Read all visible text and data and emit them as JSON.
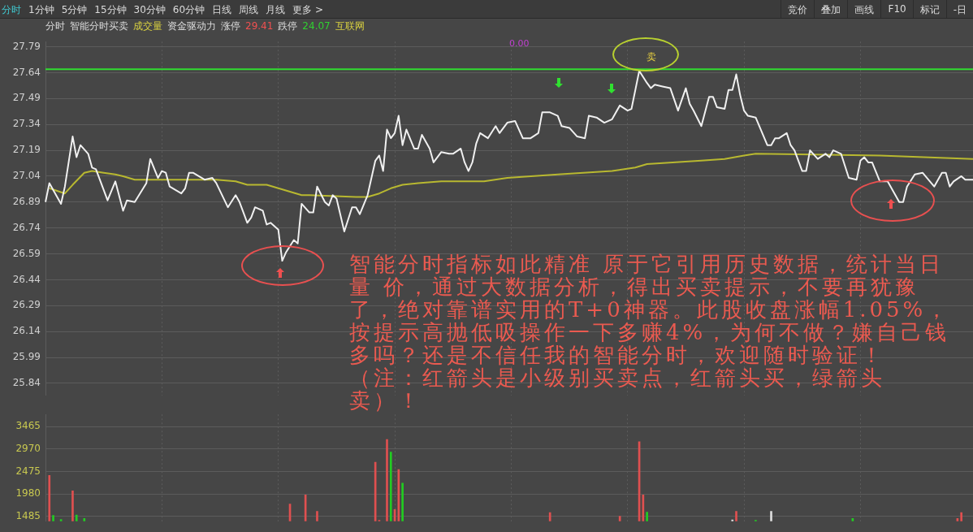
{
  "chart_data": [
    {
      "type": "line",
      "annotations": [
        "分时",
        "1分钟",
        "5分钟",
        "15分钟",
        "30分钟",
        "60分钟",
        "日线",
        "周线",
        "月线",
        "更多 >",
        "竞价",
        "叠加",
        "画线",
        "F10",
        "标记",
        "-日",
        "分时",
        "智能分时买卖",
        "成交量",
        "资金驱动力",
        "涨停",
        "29.41",
        "跌停",
        "24.07",
        "互联网",
        "0.00",
        "智能分时指标如此精准 原于它引用历史数据，统计当日量 价，通过大数据分析，得出买卖提示，不要再犹豫了，绝对靠谱实用的T+0神器。此股收盘涨幅1.05%，按提示高抛低吸操作一下多赚4%，为何不做？嫌自己钱多吗？还是不信任我的智能分时，欢迎随时验证！（注：红箭头是小级别买卖点，红箭头买，绿箭头卖）！",
        "卖"
      ],
      "categories": [
        null,
        null,
        null,
        null,
        null,
        null,
        null,
        null,
        null,
        null,
        null,
        null,
        null,
        null,
        null,
        null,
        null,
        null,
        null,
        null,
        null,
        null,
        null,
        null,
        null,
        null,
        null,
        null,
        null,
        null,
        null,
        null,
        null,
        null,
        null,
        null,
        null,
        null,
        null,
        null,
        null,
        null,
        null,
        null,
        null,
        null,
        null,
        null,
        null,
        null,
        null,
        null,
        null,
        null,
        null,
        null,
        null,
        null,
        null,
        null,
        null,
        null,
        null,
        null,
        null,
        null,
        null,
        null,
        null,
        null,
        null,
        null,
        null,
        null,
        null,
        null,
        null,
        null,
        null,
        null,
        null,
        null,
        null,
        null,
        null,
        null,
        null,
        null,
        null,
        null,
        null,
        null,
        null,
        null,
        null,
        null,
        null,
        null,
        null,
        null,
        null,
        null,
        null,
        null,
        null,
        null,
        null,
        null,
        null,
        null,
        null,
        null,
        null,
        null,
        null,
        null,
        null,
        null,
        null,
        null,
        null,
        null,
        null,
        null,
        null,
        null,
        null,
        null,
        null,
        null,
        null,
        null,
        null,
        null,
        null,
        null,
        null,
        null,
        null,
        null,
        null,
        null,
        null,
        null,
        null,
        null,
        null,
        null,
        null,
        null,
        null,
        null,
        null,
        null,
        null,
        null,
        null,
        null,
        null,
        null,
        null,
        null,
        null,
        null,
        null,
        null,
        null,
        null,
        null,
        null,
        null,
        null,
        null,
        null,
        null,
        null,
        null,
        null,
        null,
        null,
        null,
        null,
        null,
        null,
        null,
        null,
        null,
        null,
        null,
        null,
        null,
        null,
        null,
        null,
        null,
        null,
        null,
        null,
        null,
        null,
        null,
        null,
        null,
        null,
        null,
        null,
        null,
        null,
        null,
        null,
        null,
        null,
        null,
        null,
        null,
        null,
        null,
        null,
        null,
        null,
        null,
        null,
        null,
        null,
        null,
        null,
        null,
        null,
        null,
        null,
        null,
        null,
        null,
        null,
        null,
        null,
        null,
        null,
        null,
        null
      ],
      "series": [
        {
          "color": "#f0f0f0",
          "values": [
            26.89,
            27.0,
            null,
            null,
            26.88,
            26.98,
            null,
            27.27,
            27.15,
            27.22,
            null,
            27.17,
            27.09,
            27.08,
            null,
            null,
            26.9,
            null,
            27.01,
            null,
            26.84,
            26.9,
            null,
            26.89,
            null,
            null,
            27.0,
            27.14,
            null,
            27.03,
            27.07,
            27.06,
            26.98,
            null,
            null,
            26.94,
            26.97,
            27.06,
            27.06,
            null,
            null,
            27.02,
            null,
            27.03,
            27.0,
            null,
            null,
            26.86,
            null,
            26.93,
            26.89,
            null,
            26.77,
            26.8,
            26.86,
            null,
            26.84,
            26.76,
            26.77,
            null,
            26.73,
            26.55,
            26.6,
            null,
            26.67,
            26.65,
            26.88,
            null,
            26.83,
            26.83,
            26.98,
            null,
            26.89,
            26.87,
            26.93,
            26.91,
            null,
            26.72,
            null,
            26.86,
            26.86,
            26.82,
            null,
            26.93,
            null,
            27.13,
            27.16,
            27.07,
            27.31,
            27.26,
            27.29,
            27.39,
            27.22,
            27.31,
            null,
            27.2,
            27.2,
            27.28,
            null,
            27.2,
            27.12,
            null,
            27.18,
            null,
            27.17,
            27.17,
            null,
            27.2,
            27.12,
            27.07,
            27.12,
            27.23,
            27.29,
            null,
            27.26,
            null,
            27.33,
            27.29,
            null,
            27.35,
            null,
            27.36,
            null,
            27.26,
            null,
            27.26,
            null,
            27.29,
            27.41,
            null,
            27.41,
            null,
            27.39,
            27.33,
            null,
            27.32,
            null,
            27.27,
            null,
            27.26,
            27.39,
            null,
            27.38,
            null,
            27.35,
            null,
            27.37,
            null,
            27.45,
            null,
            27.42,
            27.43,
            null,
            27.65,
            null,
            27.58,
            27.55,
            27.57,
            null,
            27.56,
            null,
            27.55,
            null,
            27.42,
            null,
            27.55,
            27.46,
            27.42,
            null,
            27.33,
            null,
            27.5,
            27.5,
            27.44,
            null,
            27.43,
            27.54,
            27.54,
            27.63,
            27.51,
            27.42,
            27.39,
            null,
            27.38,
            null,
            null,
            27.22,
            27.22,
            27.26,
            27.26,
            null,
            27.29,
            27.22,
            27.19,
            null,
            27.07,
            27.07,
            27.19,
            null,
            27.14,
            null,
            27.17,
            27.15,
            27.19,
            null,
            27.17,
            null,
            27.03,
            null,
            27.02,
            27.13,
            27.15,
            27.12,
            27.12,
            null,
            27.01,
            null,
            27.01,
            null,
            null,
            26.89,
            26.89,
            26.98,
            null,
            27.05,
            null,
            27.06,
            null,
            null,
            26.98,
            null,
            27.06,
            27.06,
            26.98,
            27.01,
            null,
            27.04,
            27.02,
            null,
            27.02
          ]
        },
        {
          "color": "#b8b830",
          "values": [
            null,
            26.97,
            null,
            null,
            null,
            26.94,
            null,
            26.99,
            null,
            null,
            27.06,
            null,
            27.07,
            null,
            null,
            27.06,
            null,
            null,
            27.05,
            null,
            27.04,
            null,
            null,
            27.02,
            null,
            null,
            null,
            null,
            27.02,
            null,
            null,
            null,
            null,
            null,
            null,
            null,
            null,
            null,
            null,
            null,
            null,
            null,
            null,
            null,
            27.02,
            null,
            null,
            null,
            null,
            27.01,
            null,
            null,
            26.99,
            null,
            null,
            null,
            null,
            26.99,
            null,
            null,
            26.97,
            null,
            null,
            26.95,
            null,
            null,
            26.93,
            null,
            26.93,
            null,
            null,
            null,
            null,
            null,
            null,
            null,
            null,
            null,
            null,
            null,
            26.92,
            null,
            null,
            26.92,
            null,
            null,
            26.94,
            null,
            null,
            26.97,
            null,
            null,
            26.99,
            null,
            null,
            null,
            27.0,
            null,
            null,
            null,
            null,
            null,
            27.01,
            null,
            null,
            null,
            null,
            null,
            null,
            null,
            null,
            null,
            null,
            27.01,
            null,
            null,
            null,
            null,
            null,
            27.03,
            null,
            null,
            null,
            null,
            null,
            null,
            null,
            null,
            null,
            null,
            null,
            null,
            27.05,
            null,
            null,
            null,
            null,
            null,
            null,
            null,
            null,
            null,
            null,
            null,
            null,
            null,
            27.07,
            null,
            null,
            null,
            null,
            null,
            27.09,
            null,
            null,
            27.11,
            null,
            null,
            null,
            null,
            null,
            null,
            null,
            null,
            null,
            null,
            null,
            null,
            null,
            27.13,
            null,
            null,
            null,
            null,
            null,
            27.14,
            null,
            null,
            null,
            null,
            27.16,
            null,
            null,
            27.17,
            null,
            null,
            null,
            null,
            null,
            null,
            null,
            null,
            null,
            null,
            null,
            null,
            null,
            null,
            null,
            null,
            null,
            null,
            null,
            null,
            null,
            null,
            null,
            null,
            null,
            null,
            null,
            null,
            null,
            null,
            null,
            27.16,
            null,
            null,
            null,
            null,
            null,
            null,
            null,
            null,
            null,
            null,
            null,
            null,
            null,
            null,
            null,
            null,
            null,
            null,
            null,
            null,
            null,
            null,
            null,
            27.14
          ]
        }
      ],
      "ref_lines": [
        {
          "axis": "y",
          "value": 27.66,
          "color": "#30dd30"
        }
      ],
      "ylim": [
        25.77,
        27.82
      ],
      "yticks": [
        27.79,
        27.64,
        27.49,
        27.34,
        27.19,
        27.04,
        26.89,
        26.74,
        26.59,
        26.44,
        26.29,
        26.14,
        25.99,
        25.84
      ],
      "grid": true,
      "tick_labels": "y"
    },
    {
      "type": "bar",
      "categories": [
        null,
        null,
        null,
        null,
        null,
        null,
        null,
        null,
        null,
        null,
        null,
        null,
        null,
        null,
        null,
        null,
        null,
        null,
        null,
        null,
        null,
        null,
        null,
        null,
        null,
        null,
        null,
        null,
        null,
        null,
        null,
        null,
        null,
        null,
        null,
        null,
        null,
        null,
        null,
        null,
        null,
        null,
        null,
        null,
        null,
        null,
        null,
        null,
        null,
        null,
        null,
        null,
        null,
        null,
        null,
        null,
        null,
        null,
        null,
        null,
        null,
        null,
        null,
        null,
        null,
        null,
        null,
        null,
        null,
        null,
        null,
        null,
        null,
        null,
        null,
        null,
        null,
        null,
        null,
        null,
        null,
        null,
        null,
        null,
        null,
        null,
        null,
        null,
        null,
        null,
        null,
        null,
        null,
        null,
        null,
        null,
        null,
        null,
        null,
        null,
        null,
        null,
        null,
        null,
        null,
        null,
        null,
        null,
        null,
        null,
        null,
        null,
        null,
        null,
        null,
        null,
        null,
        null,
        null,
        null,
        null,
        null,
        null,
        null,
        null,
        null,
        null,
        null,
        null,
        null,
        null,
        null,
        null,
        null,
        null,
        null,
        null,
        null,
        null,
        null,
        null,
        null,
        null,
        null,
        null,
        null,
        null,
        null,
        null,
        null,
        null,
        null,
        null,
        null,
        null,
        null,
        null,
        null,
        null,
        null,
        null,
        null,
        null,
        null,
        null,
        null,
        null,
        null,
        null,
        null,
        null,
        null,
        null,
        null,
        null,
        null,
        null,
        null,
        null,
        null,
        null,
        null,
        null,
        null,
        null,
        null,
        null,
        null,
        null,
        null,
        null,
        null,
        null,
        null,
        null,
        null,
        null,
        null,
        null,
        null,
        null,
        null,
        null,
        null,
        null,
        null,
        null,
        null,
        null,
        null,
        null,
        null,
        null,
        null,
        null,
        null,
        null,
        null,
        null,
        null,
        null,
        null,
        null,
        null,
        null,
        null,
        null,
        null,
        null,
        null,
        null,
        null,
        null,
        null,
        null,
        null,
        null,
        null,
        null,
        null
      ],
      "values": [
        null,
        2390,
        1510,
        null,
        1420,
        null,
        null,
        2050,
        1520,
        null,
        1440,
        null,
        null,
        null,
        null,
        null,
        null,
        null,
        null,
        null,
        null,
        null,
        null,
        null,
        null,
        null,
        null,
        null,
        null,
        null,
        null,
        null,
        null,
        null,
        null,
        null,
        null,
        null,
        null,
        null,
        null,
        null,
        null,
        null,
        null,
        null,
        null,
        null,
        null,
        null,
        null,
        null,
        null,
        null,
        null,
        null,
        null,
        null,
        null,
        null,
        null,
        null,
        null,
        1760,
        null,
        null,
        null,
        1960,
        null,
        null,
        1600,
        null,
        null,
        null,
        null,
        null,
        null,
        null,
        null,
        null,
        null,
        null,
        null,
        null,
        null,
        2680,
        1400,
        null,
        3180,
        2900,
        1640,
        2520,
        2220,
        null,
        null,
        null,
        null,
        null,
        null,
        null,
        null,
        null,
        null,
        null,
        null,
        null,
        null,
        null,
        null,
        null,
        null,
        null,
        null,
        null,
        null,
        null,
        null,
        null,
        null,
        null,
        null,
        null,
        null,
        null,
        null,
        null,
        null,
        null,
        null,
        null,
        1570,
        null,
        null,
        null,
        null,
        null,
        null,
        null,
        null,
        null,
        null,
        null,
        null,
        null,
        null,
        null,
        null,
        null,
        1490,
        null,
        null,
        null,
        null,
        3130,
        1960,
        1580,
        null,
        null,
        null,
        null,
        null,
        null,
        null,
        null,
        null,
        null,
        null,
        null,
        null,
        null,
        null,
        null,
        null,
        null,
        null,
        null,
        null,
        1410,
        1600,
        null,
        null,
        null,
        null,
        1400,
        null,
        null,
        null,
        1600,
        null,
        null,
        null,
        null,
        null,
        null,
        null,
        null,
        null,
        null,
        null,
        null,
        null,
        null,
        null,
        null,
        null,
        null,
        null,
        null,
        1440,
        null,
        null,
        null,
        null,
        null,
        null,
        null,
        null,
        null,
        null,
        null,
        null,
        null,
        null,
        null,
        null,
        null,
        null,
        null,
        null,
        null,
        null,
        null,
        null,
        null,
        null,
        1440,
        1570,
        null,
        null,
        null
      ],
      "colors": [
        null,
        "#e05050",
        "#22cc22",
        null,
        "#22cc22",
        null,
        null,
        "#e05050",
        "#22cc22",
        null,
        "#22cc22",
        null,
        null,
        null,
        null,
        null,
        null,
        null,
        null,
        null,
        null,
        null,
        null,
        null,
        null,
        null,
        null,
        null,
        null,
        null,
        null,
        null,
        null,
        null,
        null,
        null,
        null,
        null,
        null,
        null,
        null,
        null,
        null,
        null,
        null,
        null,
        null,
        null,
        null,
        null,
        null,
        null,
        null,
        null,
        null,
        null,
        null,
        null,
        null,
        null,
        null,
        null,
        null,
        "#e05050",
        null,
        null,
        null,
        "#e05050",
        null,
        null,
        "#e05050",
        null,
        null,
        null,
        null,
        null,
        null,
        null,
        null,
        null,
        null,
        null,
        null,
        null,
        null,
        "#e05050",
        "#e05050",
        null,
        "#e05050",
        "#22cc22",
        "#e05050",
        "#e05050",
        "#22cc22",
        null,
        null,
        null,
        null,
        null,
        null,
        null,
        null,
        null,
        null,
        null,
        null,
        null,
        null,
        null,
        null,
        null,
        null,
        null,
        null,
        null,
        null,
        null,
        null,
        null,
        null,
        null,
        null,
        null,
        null,
        null,
        null,
        null,
        null,
        null,
        null,
        null,
        "#e05050",
        null,
        null,
        null,
        null,
        null,
        null,
        null,
        null,
        null,
        null,
        null,
        null,
        null,
        null,
        null,
        null,
        null,
        "#e05050",
        null,
        null,
        null,
        null,
        "#e05050",
        "#e05050",
        "#22cc22",
        null,
        null,
        null,
        null,
        null,
        null,
        null,
        null,
        null,
        null,
        null,
        null,
        null,
        null,
        null,
        null,
        null,
        null,
        null,
        null,
        null,
        "#dddddd",
        "#e05050",
        null,
        null,
        null,
        null,
        "#22cc22",
        null,
        null,
        null,
        "#dddddd",
        null,
        null,
        null,
        null,
        null,
        null,
        null,
        null,
        null,
        null,
        null,
        null,
        null,
        null,
        null,
        null,
        null,
        null,
        null,
        null,
        "#22cc22",
        null,
        null,
        null,
        null,
        null,
        null,
        null,
        null,
        null,
        null,
        null,
        null,
        null,
        null,
        null,
        null,
        null,
        null,
        null,
        null,
        null,
        null,
        null,
        null,
        null,
        null,
        "#e05050",
        "#e05050",
        null,
        null,
        null
      ],
      "ylim": [
        1380,
        3730
      ],
      "yticks": [
        1485,
        1980,
        2475,
        2970,
        3465
      ],
      "grid": true,
      "tick_labels": "y"
    }
  ]
}
